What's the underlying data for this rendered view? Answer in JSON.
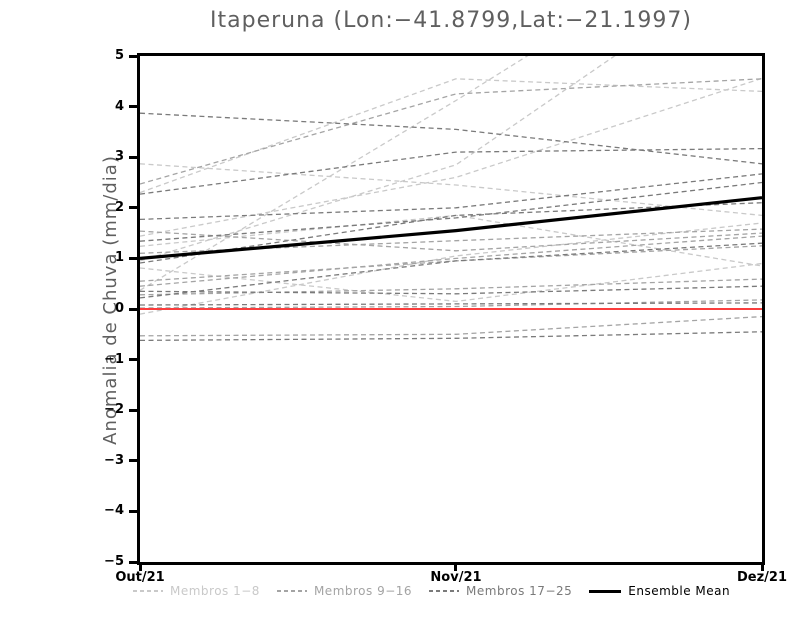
{
  "title": "Itaperuna (Lon:−41.8799,Lat:−21.1997)",
  "ylabel": "Anomalia de Chuva (mm/dia)",
  "chart_data": {
    "type": "line",
    "x_categories": [
      "Out/21",
      "Nov/21",
      "Dez/21"
    ],
    "x_positions": [
      0,
      0.508,
      1
    ],
    "ylim": [
      -5,
      5
    ],
    "grid": false,
    "legend_position": "bottom",
    "yticks": [
      {
        "value": 5,
        "label": "5"
      },
      {
        "value": 4,
        "label": "4"
      },
      {
        "value": 3,
        "label": "3"
      },
      {
        "value": 2,
        "label": "2"
      },
      {
        "value": 1,
        "label": "1"
      },
      {
        "value": 0,
        "label": "0"
      },
      {
        "value": -1,
        "label": "−1"
      },
      {
        "value": -2,
        "label": "−2"
      },
      {
        "value": -3,
        "label": "−3"
      },
      {
        "value": -4,
        "label": "−4"
      },
      {
        "value": -5,
        "label": "−5"
      }
    ],
    "zero_line": {
      "value": 0,
      "color": "#fa3e3e"
    },
    "groups": [
      {
        "name": "Membros 1−8",
        "color": "#c9c9c9",
        "members": [
          [
            2.87,
            2.45,
            1.85
          ],
          [
            0.37,
            4.12,
            7.9
          ],
          [
            0.95,
            2.85,
            7.0
          ],
          [
            2.3,
            4.55,
            4.3
          ],
          [
            1.44,
            2.6,
            4.56
          ],
          [
            0.81,
            0.15,
            0.9
          ],
          [
            -0.1,
            1.05,
            1.7
          ],
          [
            1.24,
            1.85,
            0.85
          ]
        ]
      },
      {
        "name": "Membros 9−16",
        "color": "#a4a4a4",
        "members": [
          [
            2.47,
            4.25,
            4.55
          ],
          [
            1.54,
            1.15,
            1.5
          ],
          [
            0.55,
            0.95,
            1.25
          ],
          [
            0.28,
            0.4,
            0.59
          ],
          [
            0.02,
            0.05,
            0.18
          ],
          [
            -0.53,
            -0.5,
            -0.15
          ],
          [
            1.1,
            1.35,
            1.58
          ],
          [
            0.45,
            1.0,
            1.44
          ]
        ]
      },
      {
        "name": "Membros 17−25",
        "color": "#7a7a7a",
        "members": [
          [
            3.87,
            3.55,
            2.87
          ],
          [
            1.77,
            2.0,
            2.67
          ],
          [
            1.34,
            1.8,
            2.5
          ],
          [
            0.91,
            1.85,
            2.1
          ],
          [
            0.35,
            0.3,
            0.45
          ],
          [
            0.22,
            0.95,
            1.3
          ],
          [
            0.08,
            0.1,
            0.12
          ],
          [
            -0.62,
            -0.58,
            -0.45
          ],
          [
            2.27,
            3.1,
            3.17
          ]
        ]
      }
    ],
    "ensemble_mean": {
      "name": "Ensemble Mean",
      "color": "#000000",
      "values": [
        1.0,
        1.55,
        2.2
      ]
    }
  },
  "legend": {
    "items": [
      {
        "label": "Membros 1−8",
        "color": "#c9c9c9",
        "line_style": "dashed"
      },
      {
        "label": "Membros 9−16",
        "color": "#a4a4a4",
        "line_style": "dashed"
      },
      {
        "label": "Membros 17−25",
        "color": "#7a7a7a",
        "line_style": "dashed"
      },
      {
        "label": "Ensemble Mean",
        "color": "#000000",
        "line_style": "solid"
      }
    ]
  }
}
